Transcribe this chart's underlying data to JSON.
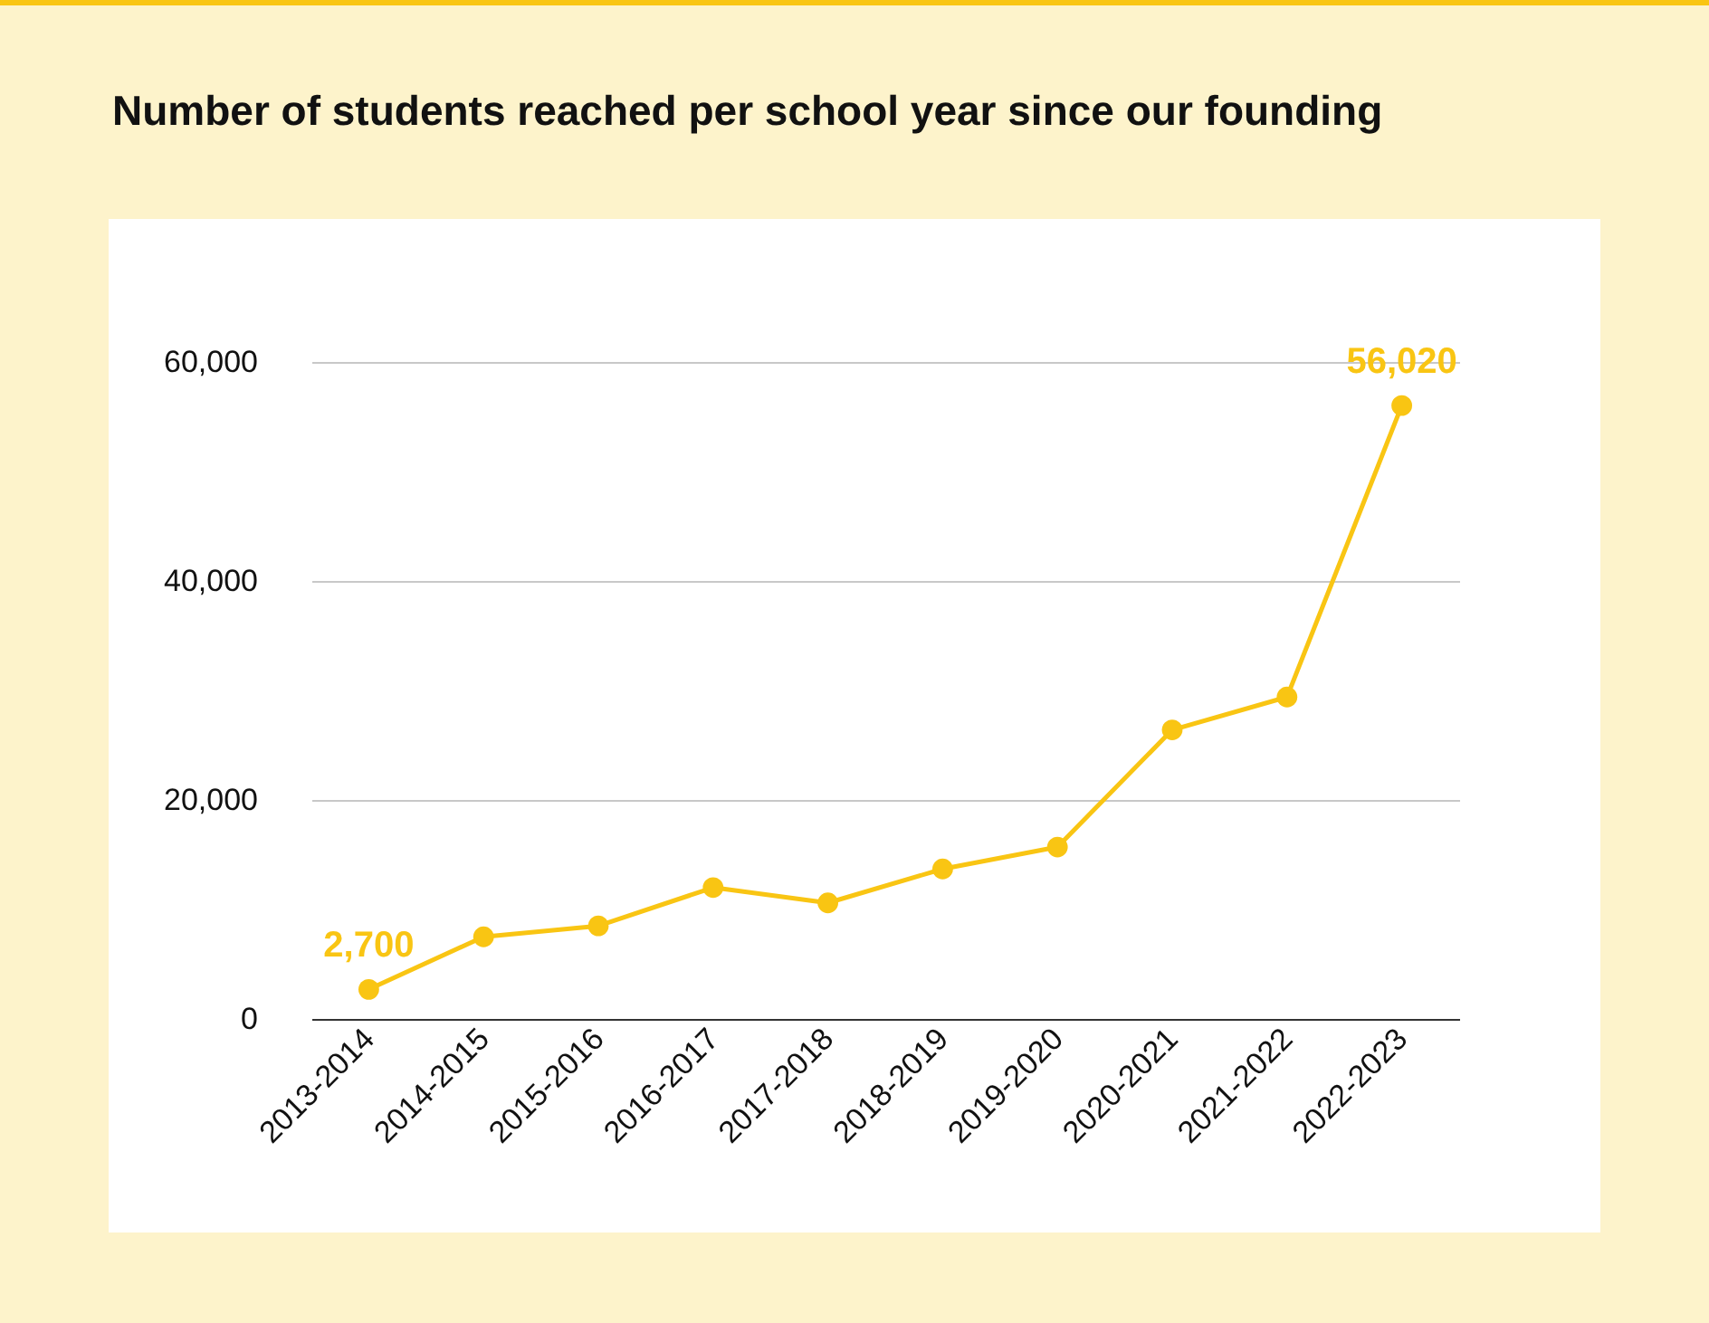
{
  "chart_data": {
    "type": "line",
    "title": "Number of students reached per school year since our founding",
    "categories": [
      "2013-2014",
      "2014-2015",
      "2015-2016",
      "2016-2017",
      "2017-2018",
      "2018-2019",
      "2019-2020",
      "2020-2021",
      "2021-2022",
      "2022-2023"
    ],
    "series": [
      {
        "color": "#f9c513",
        "values": [
          2700,
          7500,
          8500,
          12000,
          10600,
          13700,
          15700,
          26400,
          29400,
          56020
        ],
        "value_labels": [
          "2,700",
          null,
          null,
          null,
          null,
          null,
          null,
          null,
          null,
          "56,020"
        ]
      }
    ],
    "ylim": [
      0,
      60000
    ],
    "yticks": [
      {
        "value": 0,
        "label": "0"
      },
      {
        "value": 20000,
        "label": "20,000"
      },
      {
        "value": 40000,
        "label": "40,000"
      },
      {
        "value": 60000,
        "label": "60,000"
      }
    ],
    "grid": "y",
    "marker": "circle",
    "line_style": "solid"
  }
}
